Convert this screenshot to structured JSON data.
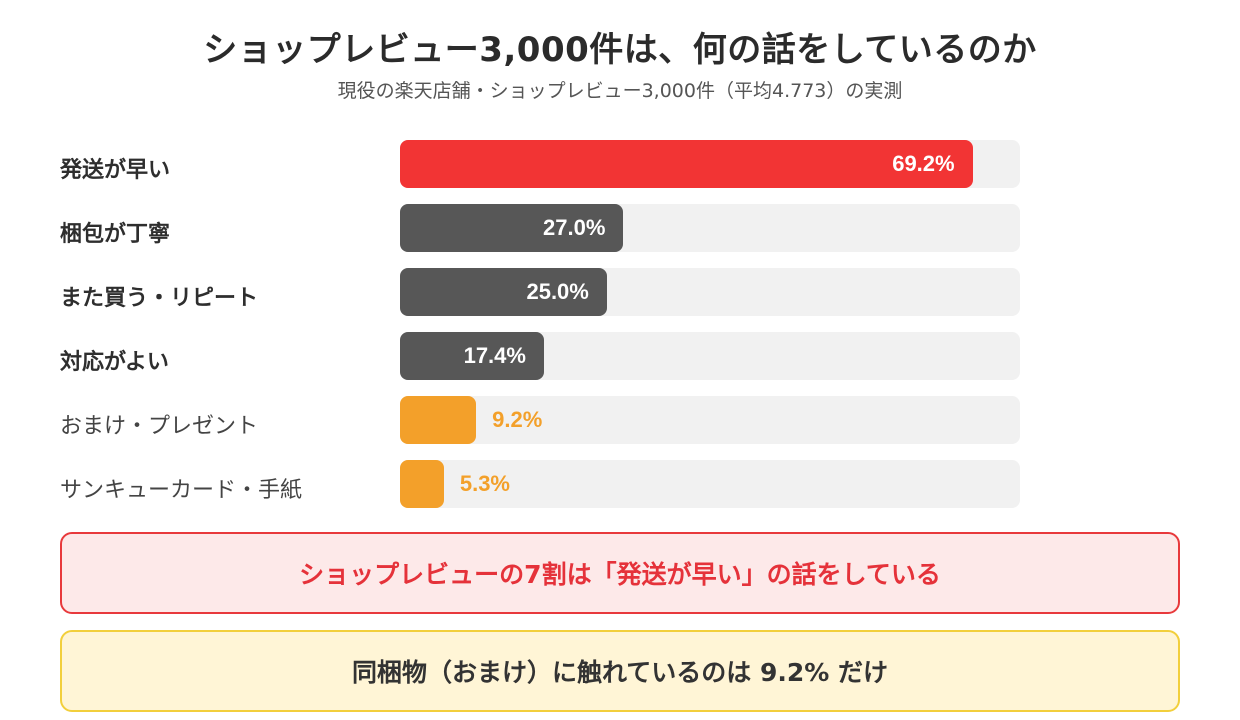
{
  "title": "ショップレビュー3,000件は、何の話をしているのか",
  "subtitle": "現役の楽天店舗・ショップレビュー3,000件（平均4.773）の実測",
  "colors": {
    "top": "#f23434",
    "mid": "#575757",
    "low": "#f3a02a",
    "track": "#f1f1f1",
    "callout_red": "#e5323a",
    "callout_yellow_border": "#f2cf3c"
  },
  "chart_data": {
    "type": "bar",
    "orientation": "horizontal",
    "categories": [
      "発送が早い",
      "梱包が丁寧",
      "また買う・リピート",
      "対応がよい",
      "おまけ・プレゼント",
      "サンキューカード・手紙"
    ],
    "values": [
      69.2,
      27.0,
      25.0,
      17.4,
      9.2,
      5.3
    ],
    "value_labels": [
      "69.2%",
      "27.0%",
      "25.0%",
      "17.4%",
      "9.2%",
      "5.3%"
    ],
    "xlim": [
      0,
      75
    ],
    "grid": false,
    "title": "ショップレビュー3,000件は、何の話をしているのか",
    "xlabel": "",
    "ylabel": ""
  },
  "callouts": {
    "red": "ショップレビューの7割は「発送が早い」の話をしている",
    "yellow": "同梱物（おまけ）に触れているのは 9.2% だけ"
  }
}
